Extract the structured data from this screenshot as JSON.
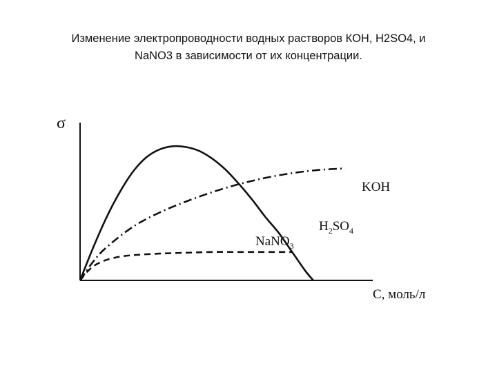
{
  "page": {
    "title_line1": "Изменение электропроводности водных растворов КОН, H2SO4, и",
    "title_line2": "NaNO3 в зависимости от их концентрации."
  },
  "chart_data": {
    "type": "line",
    "title": "Изменение электропроводности водных растворов КОН, H2SO4, и NaNO3 в зависимости от их концентрации.",
    "ylabel": "σ",
    "xlabel": "C, моль/л",
    "xlim": [
      0,
      1
    ],
    "ylim": [
      0,
      1
    ],
    "grid": false,
    "legend": "inline labels",
    "series": [
      {
        "name": "H2SO4",
        "label": {
          "main": "H",
          "sub1": "2",
          "mid": "SO",
          "sub2": "4"
        },
        "style": "solid",
        "x": [
          0,
          0.05,
          0.1,
          0.15,
          0.2,
          0.25,
          0.3,
          0.35,
          0.4,
          0.45,
          0.5,
          0.55,
          0.6,
          0.65,
          0.7,
          0.75,
          0.8,
          0.85,
          0.88
        ],
        "y": [
          0,
          0.21,
          0.4,
          0.56,
          0.69,
          0.78,
          0.83,
          0.85,
          0.845,
          0.82,
          0.77,
          0.7,
          0.61,
          0.51,
          0.4,
          0.3,
          0.18,
          0.06,
          0.0
        ]
      },
      {
        "name": "KOH",
        "label": {
          "main": "KOH"
        },
        "style": "dash-dot",
        "x": [
          0,
          0.05,
          0.1,
          0.2,
          0.3,
          0.4,
          0.5,
          0.6,
          0.7,
          0.8,
          0.9,
          1.0
        ],
        "y": [
          0,
          0.12,
          0.21,
          0.34,
          0.43,
          0.5,
          0.56,
          0.61,
          0.65,
          0.68,
          0.7,
          0.71
        ]
      },
      {
        "name": "NaNO3",
        "label": {
          "main": "NaNO",
          "sub2": "3"
        },
        "style": "dashed",
        "x": [
          0,
          0.03,
          0.06,
          0.1,
          0.15,
          0.2,
          0.3,
          0.4,
          0.5,
          0.6,
          0.7,
          0.8
        ],
        "y": [
          0,
          0.06,
          0.1,
          0.13,
          0.15,
          0.16,
          0.17,
          0.175,
          0.18,
          0.18,
          0.18,
          0.18
        ]
      }
    ]
  }
}
